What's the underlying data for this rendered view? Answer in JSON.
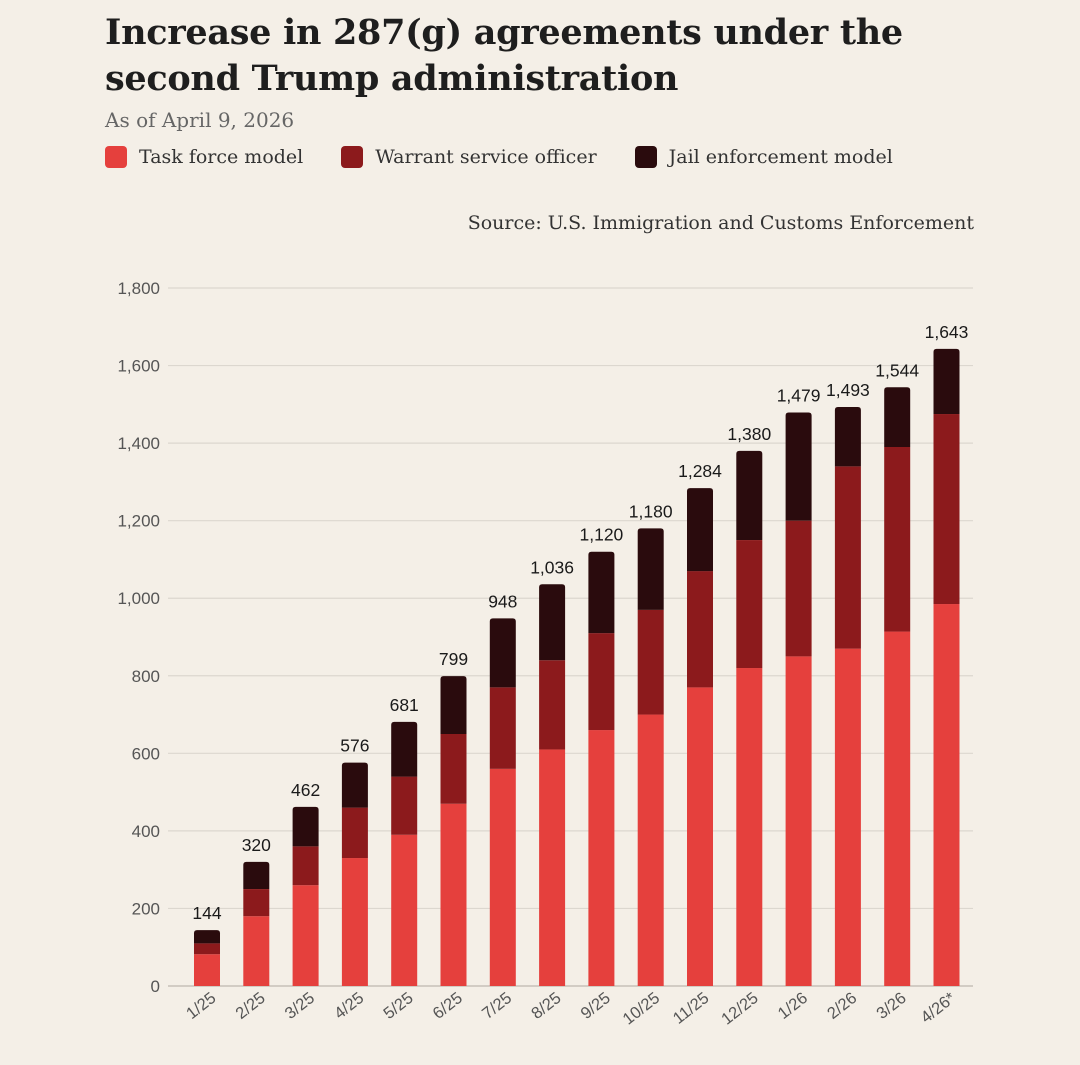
{
  "header": {
    "title": "Increase in 287(g) agreements under the second Trump administration",
    "subtitle": "As of April 9, 2026",
    "source": "Source: U.S. Immigration and Customs Enforcement"
  },
  "legend": [
    {
      "label": "Task force model",
      "color": "#e5403d"
    },
    {
      "label": "Warrant service officer",
      "color": "#8c1a1c"
    },
    {
      "label": "Jail enforcement model",
      "color": "#2a0b0d"
    }
  ],
  "chart_data": {
    "type": "bar",
    "stacked": true,
    "title": "Increase in 287(g) agreements under the second Trump administration",
    "subtitle": "As of April 9, 2026",
    "xlabel": "",
    "ylabel": "",
    "ylim": [
      0,
      1800
    ],
    "yticks": [
      0,
      200,
      400,
      600,
      800,
      1000,
      1200,
      1400,
      1600,
      1800
    ],
    "ytick_labels": [
      "0",
      "200",
      "400",
      "600",
      "800",
      "1,000",
      "1,200",
      "1,400",
      "1,600",
      "1,800"
    ],
    "grid": true,
    "legend_position": "top-left",
    "categories": [
      "1/25",
      "2/25",
      "3/25",
      "4/25",
      "5/25",
      "6/25",
      "7/25",
      "8/25",
      "9/25",
      "10/25",
      "11/25",
      "12/25",
      "1/26",
      "2/26",
      "3/26",
      "4/26*"
    ],
    "series": [
      {
        "name": "Task force model",
        "color": "#e5403d",
        "values": [
          82,
          180,
          260,
          330,
          390,
          470,
          560,
          610,
          660,
          700,
          770,
          820,
          850,
          870,
          914,
          985
        ]
      },
      {
        "name": "Warrant service officer",
        "color": "#8c1a1c",
        "values": [
          28,
          70,
          100,
          130,
          150,
          180,
          210,
          230,
          250,
          270,
          300,
          330,
          350,
          470,
          476,
          490
        ]
      },
      {
        "name": "Jail enforcement model",
        "color": "#2a0b0d",
        "values": [
          34,
          70,
          102,
          116,
          141,
          149,
          178,
          196,
          210,
          210,
          214,
          230,
          279,
          153,
          154,
          168
        ]
      }
    ],
    "totals": [
      144,
      320,
      462,
      576,
      681,
      799,
      948,
      1036,
      1120,
      1180,
      1284,
      1380,
      1479,
      1493,
      1544,
      1643
    ],
    "total_labels": [
      "144",
      "320",
      "462",
      "576",
      "681",
      "799",
      "948",
      "1,036",
      "1,120",
      "1,180",
      "1,284",
      "1,380",
      "1,479",
      "1,493",
      "1,544",
      "1,643"
    ]
  }
}
